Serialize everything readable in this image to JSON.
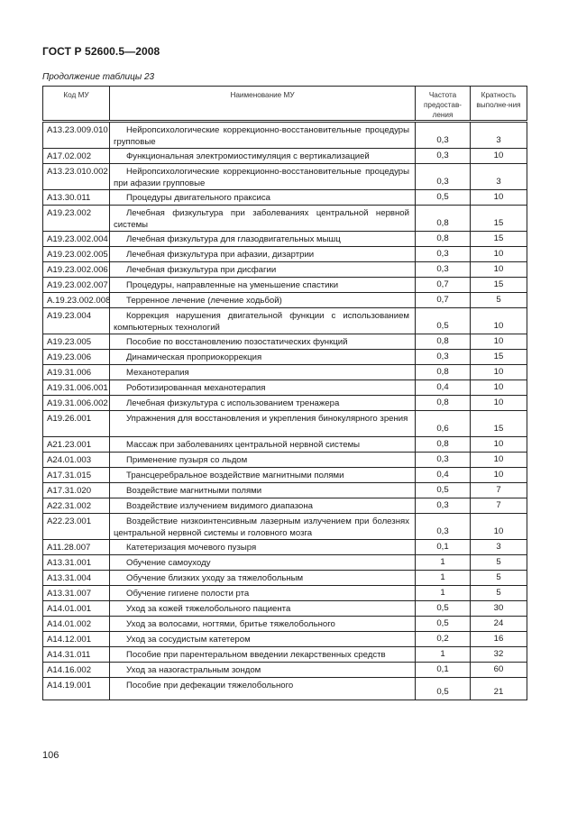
{
  "header": {
    "title": "ГОСТ Р 52600.5—2008"
  },
  "caption": "Продолжение таблицы 23",
  "table": {
    "columns": [
      "Код МУ",
      "Наименование МУ",
      "Частота предостав-ления",
      "Кратность выполне-ния"
    ],
    "rows": [
      {
        "code": "А13.23.009.010",
        "name": "Нейропсихологические коррекционно-восстановительные процедуры групповые",
        "freq": "0,3",
        "mult": "3",
        "lines": 2
      },
      {
        "code": "А17.02.002",
        "name": "Функциональная электромиостимуляция с вертикализацией",
        "freq": "0,3",
        "mult": "10",
        "lines": 1
      },
      {
        "code": "А13.23.010.002",
        "name": "Нейропсихологические коррекционно-восстановительные процедуры при афазии групповые",
        "freq": "0,3",
        "mult": "3",
        "lines": 2
      },
      {
        "code": "А13.30.011",
        "name": "Процедуры двигательного праксиса",
        "freq": "0,5",
        "mult": "10",
        "lines": 1
      },
      {
        "code": "А19.23.002",
        "name": "Лечебная физкультура при заболеваниях центральной нервной системы",
        "freq": "0,8",
        "mult": "15",
        "lines": 2
      },
      {
        "code": "А19.23.002.004",
        "name": "Лечебная физкультура для глазодвигательных мышц",
        "freq": "0,8",
        "mult": "15",
        "lines": 1
      },
      {
        "code": "А19.23.002.005",
        "name": "Лечебная физкультура при афазии, дизартрии",
        "freq": "0,3",
        "mult": "10",
        "lines": 1
      },
      {
        "code": "А19.23.002.006",
        "name": "Лечебная физкультура при дисфагии",
        "freq": "0,3",
        "mult": "10",
        "lines": 1
      },
      {
        "code": "А19.23.002.007",
        "name": "Процедуры, направленные на уменьшение спастики",
        "freq": "0,7",
        "mult": "15",
        "lines": 1
      },
      {
        "code": "А.19.23.002.008",
        "name": "Терренное лечение (лечение ходьбой)",
        "freq": "0,7",
        "mult": "5",
        "lines": 1
      },
      {
        "code": "А19.23.004",
        "name": "Коррекция нарушения двигательной функции с использованием компьютерных технологий",
        "freq": "0,5",
        "mult": "10",
        "lines": 2
      },
      {
        "code": "А19.23.005",
        "name": "Пособие по восстановлению позостатических функций",
        "freq": "0,8",
        "mult": "10",
        "lines": 1
      },
      {
        "code": "А19.23.006",
        "name": "Динамическая проприокоррекция",
        "freq": "0,3",
        "mult": "15",
        "lines": 1
      },
      {
        "code": "А19.31.006",
        "name": "Механотерапия",
        "freq": "0,8",
        "mult": "10",
        "lines": 1
      },
      {
        "code": "А19.31.006.001",
        "name": "Роботизированная механотерапия",
        "freq": "0,4",
        "mult": "10",
        "lines": 1
      },
      {
        "code": "А19.31.006.002",
        "name": "Лечебная физкультура с использованием тренажера",
        "freq": "0,8",
        "mult": "10",
        "lines": 1
      },
      {
        "code": "А19.26.001",
        "name": "Упражнения для восстановления и укрепления бинокулярного зрения",
        "freq": "0,6",
        "mult": "15",
        "lines": 2
      },
      {
        "code": "А21.23.001",
        "name": "Массаж при заболеваниях центральной нервной системы",
        "freq": "0,8",
        "mult": "10",
        "lines": 1
      },
      {
        "code": "А24.01.003",
        "name": "Применение пузыря со льдом",
        "freq": "0,3",
        "mult": "10",
        "lines": 1
      },
      {
        "code": "А17.31.015",
        "name": "Трансцеребральное воздействие магнитными полями",
        "freq": "0,4",
        "mult": "10",
        "lines": 1
      },
      {
        "code": "А17.31.020",
        "name": "Воздействие магнитными полями",
        "freq": "0,5",
        "mult": "7",
        "lines": 1
      },
      {
        "code": "А22.31.002",
        "name": "Воздействие излучением видимого диапазона",
        "freq": "0,3",
        "mult": "7",
        "lines": 1
      },
      {
        "code": "А22.23.001",
        "name": "Воздействие низкоинтенсивным лазерным излучением при болезнях центральной нервной системы и головного мозга",
        "freq": "0,3",
        "mult": "10",
        "lines": 2
      },
      {
        "code": "А11.28.007",
        "name": "Катетеризация мочевого пузыря",
        "freq": "0,1",
        "mult": "3",
        "lines": 1
      },
      {
        "code": "А13.31.001",
        "name": "Обучение самоуходу",
        "freq": "1",
        "mult": "5",
        "lines": 1
      },
      {
        "code": "А13.31.004",
        "name": "Обучение близких уходу за тяжелобольным",
        "freq": "1",
        "mult": "5",
        "lines": 1
      },
      {
        "code": "А13.31.007",
        "name": "Обучение гигиене полости рта",
        "freq": "1",
        "mult": "5",
        "lines": 1
      },
      {
        "code": "А14.01.001",
        "name": "Уход за кожей тяжелобольного пациента",
        "freq": "0,5",
        "mult": "30",
        "lines": 1
      },
      {
        "code": "А14.01.002",
        "name": "Уход за волосами, ногтями, бритье тяжелобольного",
        "freq": "0,5",
        "mult": "24",
        "lines": 1
      },
      {
        "code": "А14.12.001",
        "name": "Уход за сосудистым катетером",
        "freq": "0,2",
        "mult": "16",
        "lines": 1
      },
      {
        "code": "А14.31.011",
        "name": "Пособие при парентеральном введении лекарственных средств",
        "freq": "1",
        "mult": "32",
        "lines": 1
      },
      {
        "code": "А14.16.002",
        "name": "Уход за назогастральным зондом",
        "freq": "0,1",
        "mult": "60",
        "lines": 1
      },
      {
        "code": "А14.19.001",
        "name": "Пособие при дефекации тяжелобольного",
        "freq": "0,5",
        "mult": "21",
        "lines": 1
      }
    ]
  },
  "footer": {
    "page_number": "106"
  }
}
